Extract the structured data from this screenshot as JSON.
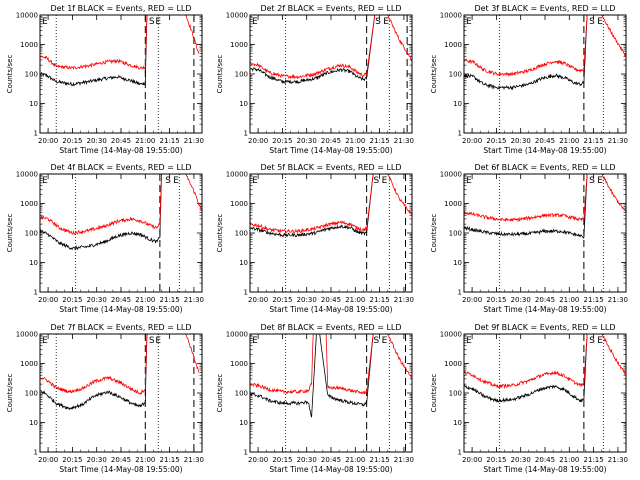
{
  "figure": {
    "background": "#ffffff",
    "axis_color": "#000000",
    "events_color": "#000000",
    "lld_color": "#ff0000"
  },
  "chart_data": [
    {
      "type": "line",
      "title": "Det 1f BLACK = Events, RED = LLD",
      "xlabel": "Start Time (14-May-08 19:55:00)",
      "ylabel": "Counts/sec",
      "xticks": [
        "20:00",
        "20:15",
        "20:30",
        "20:45",
        "21:00",
        "21:15",
        "21:30"
      ],
      "yticks": [
        "1",
        "10",
        "100",
        "1000",
        "10000"
      ],
      "ylog": true,
      "ylim": [
        1,
        10000
      ],
      "xlim_minutes": [
        0,
        100
      ],
      "dotted_lines_minutes": [
        10,
        73
      ],
      "dashed_lines_minutes": [
        65,
        95
      ],
      "markers": [
        "E",
        "S",
        "E"
      ],
      "marker_minutes": [
        0,
        66,
        70
      ],
      "series": [
        {
          "name": "Events",
          "x_minutes": [
            0,
            4,
            10,
            20,
            30,
            40,
            48,
            56,
            62,
            65,
            66,
            90,
            98
          ],
          "values": [
            100,
            90,
            55,
            45,
            55,
            70,
            80,
            60,
            45,
            50,
            10000,
            10000,
            10000
          ]
        },
        {
          "name": "LLD",
          "x_minutes": [
            0,
            4,
            10,
            20,
            30,
            40,
            48,
            56,
            62,
            65,
            66,
            90,
            94,
            98
          ],
          "values": [
            400,
            350,
            180,
            160,
            190,
            250,
            280,
            200,
            160,
            170,
            10000,
            10000,
            2500,
            500
          ]
        }
      ]
    },
    {
      "type": "line",
      "title": "Det 2f BLACK = Events, RED = LLD",
      "xlabel": "Start Time (14-May-08 19:55:00)",
      "ylabel": "Counts/sec",
      "xticks": [
        "20:00",
        "20:15",
        "20:30",
        "20:45",
        "21:00",
        "21:15",
        "21:30"
      ],
      "yticks": [
        "1",
        "10",
        "100",
        "1000",
        "10000"
      ],
      "ylog": true,
      "ylim": [
        1,
        10000
      ],
      "xlim_minutes": [
        0,
        100
      ],
      "dotted_lines_minutes": [
        22,
        86
      ],
      "dashed_lines_minutes": [
        72,
        97
      ],
      "markers": [
        "E",
        "S",
        "E"
      ],
      "marker_minutes": [
        0,
        76,
        81
      ],
      "series": [
        {
          "name": "Events",
          "x_minutes": [
            0,
            5,
            12,
            20,
            30,
            40,
            48,
            56,
            62,
            66,
            70,
            72,
            77,
            80,
            100
          ],
          "values": [
            150,
            140,
            80,
            55,
            55,
            70,
            110,
            140,
            120,
            80,
            65,
            70,
            10000,
            10000,
            10000
          ]
        },
        {
          "name": "LLD",
          "x_minutes": [
            0,
            5,
            12,
            20,
            30,
            40,
            48,
            56,
            62,
            66,
            70,
            72,
            77,
            85,
            92,
            100
          ],
          "values": [
            230,
            200,
            110,
            85,
            80,
            100,
            150,
            200,
            170,
            115,
            90,
            100,
            10000,
            10000,
            1500,
            300
          ]
        }
      ]
    },
    {
      "type": "line",
      "title": "Det 3f BLACK = Events, RED = LLD",
      "xlabel": "Start Time (14-May-08 19:55:00)",
      "ylabel": "Counts/sec",
      "xticks": [
        "20:00",
        "20:15",
        "20:30",
        "20:45",
        "21:00",
        "21:15",
        "21:30"
      ],
      "yticks": [
        "1",
        "10",
        "100",
        "1000",
        "10000"
      ],
      "ylog": true,
      "ylim": [
        1,
        10000
      ],
      "xlim_minutes": [
        0,
        100
      ],
      "dotted_lines_minutes": [
        22,
        86
      ],
      "dashed_lines_minutes": [
        74,
        100
      ],
      "markers": [
        "E",
        "S",
        "E"
      ],
      "marker_minutes": [
        0,
        76,
        81
      ],
      "series": [
        {
          "name": "Events",
          "x_minutes": [
            0,
            6,
            12,
            20,
            30,
            40,
            48,
            56,
            62,
            68,
            72,
            74,
            76,
            85,
            100
          ],
          "values": [
            90,
            80,
            45,
            35,
            35,
            45,
            70,
            90,
            75,
            50,
            45,
            50,
            10000,
            10000,
            10000
          ]
        },
        {
          "name": "LLD",
          "x_minutes": [
            0,
            6,
            12,
            20,
            30,
            40,
            48,
            56,
            62,
            68,
            72,
            74,
            76,
            85,
            92,
            100
          ],
          "values": [
            300,
            250,
            140,
            100,
            100,
            130,
            200,
            270,
            230,
            150,
            130,
            150,
            10000,
            10000,
            2000,
            400
          ]
        }
      ]
    },
    {
      "type": "line",
      "title": "Det 4f BLACK = Events, RED = LLD",
      "xlabel": "Start Time (14-May-08 19:55:00)",
      "ylabel": "Counts/sec",
      "xticks": [
        "20:00",
        "20:15",
        "20:30",
        "20:45",
        "21:00",
        "21:15",
        "21:30"
      ],
      "yticks": [
        "1",
        "10",
        "100",
        "1000",
        "10000"
      ],
      "ylog": true,
      "ylim": [
        1,
        10000
      ],
      "xlim_minutes": [
        0,
        100
      ],
      "dotted_lines_minutes": [
        22,
        86
      ],
      "dashed_lines_minutes": [
        74,
        100
      ],
      "markers": [
        "E",
        "S",
        "E"
      ],
      "marker_minutes": [
        0,
        76,
        81
      ],
      "series": [
        {
          "name": "Events",
          "x_minutes": [
            0,
            5,
            12,
            20,
            30,
            40,
            48,
            56,
            62,
            68,
            72,
            74,
            75,
            90,
            100
          ],
          "values": [
            120,
            90,
            45,
            30,
            35,
            50,
            80,
            100,
            90,
            60,
            50,
            70,
            10000,
            10000,
            10000
          ]
        },
        {
          "name": "LLD",
          "x_minutes": [
            0,
            5,
            12,
            20,
            30,
            40,
            48,
            56,
            62,
            68,
            72,
            74,
            75,
            90,
            96,
            100
          ],
          "values": [
            350,
            300,
            150,
            100,
            120,
            170,
            250,
            300,
            260,
            180,
            150,
            200,
            10000,
            10000,
            2000,
            500
          ]
        }
      ]
    },
    {
      "type": "line",
      "title": "Det 5f BLACK = Events, RED = LLD",
      "xlabel": "Start Time (14-May-08 19:55:00)",
      "ylabel": "Counts/sec",
      "xticks": [
        "20:00",
        "20:15",
        "20:30",
        "20:45",
        "21:00",
        "21:15",
        "21:30"
      ],
      "yticks": [
        "1",
        "10",
        "100",
        "1000",
        "10000"
      ],
      "ylog": true,
      "ylim": [
        1,
        10000
      ],
      "xlim_minutes": [
        0,
        100
      ],
      "dotted_lines_minutes": [
        22,
        86
      ],
      "dashed_lines_minutes": [
        72,
        96
      ],
      "markers": [
        "E",
        "S",
        "E"
      ],
      "marker_minutes": [
        0,
        75,
        80
      ],
      "series": [
        {
          "name": "Events",
          "x_minutes": [
            0,
            5,
            12,
            20,
            30,
            40,
            48,
            56,
            62,
            66,
            70,
            72,
            76,
            82,
            100
          ],
          "values": [
            150,
            130,
            100,
            85,
            85,
            100,
            140,
            170,
            150,
            110,
            95,
            100,
            10000,
            10000,
            10000
          ]
        },
        {
          "name": "LLD",
          "x_minutes": [
            0,
            5,
            12,
            20,
            30,
            40,
            48,
            56,
            62,
            66,
            70,
            72,
            76,
            85,
            92,
            100
          ],
          "values": [
            200,
            180,
            130,
            115,
            115,
            140,
            190,
            230,
            200,
            150,
            130,
            140,
            10000,
            10000,
            1500,
            400
          ]
        }
      ]
    },
    {
      "type": "line",
      "title": "Det 6f BLACK = Events, RED = LLD",
      "xlabel": "Start Time (14-May-08 19:55:00)",
      "ylabel": "Counts/sec",
      "xticks": [
        "20:00",
        "20:15",
        "20:30",
        "20:45",
        "21:00",
        "21:15",
        "21:30"
      ],
      "yticks": [
        "1",
        "10",
        "100",
        "1000",
        "10000"
      ],
      "ylog": true,
      "ylim": [
        1,
        10000
      ],
      "xlim_minutes": [
        0,
        100
      ],
      "dotted_lines_minutes": [
        22,
        86
      ],
      "dashed_lines_minutes": [
        74,
        100
      ],
      "markers": [
        "E",
        "S",
        "E"
      ],
      "marker_minutes": [
        0,
        76,
        81
      ],
      "series": [
        {
          "name": "Events",
          "x_minutes": [
            0,
            8,
            16,
            24,
            32,
            40,
            50,
            60,
            68,
            72,
            74,
            76,
            85,
            100
          ],
          "values": [
            150,
            120,
            100,
            90,
            90,
            95,
            115,
            115,
            90,
            80,
            70,
            10000,
            10000,
            10000
          ]
        },
        {
          "name": "LLD",
          "x_minutes": [
            0,
            8,
            16,
            24,
            32,
            40,
            50,
            60,
            68,
            72,
            74,
            76,
            85,
            92,
            100
          ],
          "values": [
            500,
            400,
            320,
            280,
            280,
            320,
            400,
            400,
            320,
            280,
            300,
            10000,
            10000,
            2000,
            500
          ]
        }
      ]
    },
    {
      "type": "line",
      "title": "Det 7f BLACK = Events, RED = LLD",
      "xlabel": "Start Time (14-May-08 19:55:00)",
      "ylabel": "Counts/sec",
      "xticks": [
        "20:00",
        "20:15",
        "20:30",
        "20:45",
        "21:00",
        "21:15",
        "21:30"
      ],
      "yticks": [
        "1",
        "10",
        "100",
        "1000",
        "10000"
      ],
      "ylog": true,
      "ylim": [
        1,
        10000
      ],
      "xlim_minutes": [
        0,
        100
      ],
      "dotted_lines_minutes": [
        10,
        73
      ],
      "dashed_lines_minutes": [
        65,
        95
      ],
      "markers": [
        "E",
        "S",
        "E"
      ],
      "marker_minutes": [
        0,
        66,
        70
      ],
      "series": [
        {
          "name": "Events",
          "x_minutes": [
            0,
            4,
            10,
            18,
            26,
            34,
            42,
            50,
            58,
            62,
            65,
            66,
            90,
            98
          ],
          "values": [
            120,
            90,
            45,
            30,
            40,
            80,
            110,
            70,
            40,
            35,
            50,
            10000,
            10000,
            10000
          ]
        },
        {
          "name": "LLD",
          "x_minutes": [
            0,
            4,
            10,
            18,
            26,
            34,
            42,
            50,
            58,
            62,
            65,
            66,
            90,
            94,
            98
          ],
          "values": [
            350,
            280,
            150,
            110,
            140,
            250,
            330,
            220,
            120,
            100,
            140,
            10000,
            10000,
            2500,
            500
          ]
        }
      ]
    },
    {
      "type": "line",
      "title": "Det 8f BLACK = Events, RED = LLD",
      "xlabel": "Start Time (14-May-08 19:55:00)",
      "ylabel": "Counts/sec",
      "xticks": [
        "20:00",
        "20:15",
        "20:30",
        "20:45",
        "21:00",
        "21:15",
        "21:30"
      ],
      "yticks": [
        "1",
        "10",
        "100",
        "1000",
        "10000"
      ],
      "ylog": true,
      "ylim": [
        1,
        10000
      ],
      "xlim_minutes": [
        0,
        100
      ],
      "dotted_lines_minutes": [
        22,
        86
      ],
      "dashed_lines_minutes": [
        72,
        96
      ],
      "markers": [
        "E",
        "S",
        "E"
      ],
      "marker_minutes": [
        0,
        75,
        80
      ],
      "series": [
        {
          "name": "Events",
          "x_minutes": [
            0,
            6,
            12,
            20,
            30,
            36,
            38,
            41,
            43,
            48,
            54,
            60,
            64,
            70,
            72,
            76,
            82,
            100
          ],
          "values": [
            90,
            80,
            55,
            45,
            45,
            50,
            15,
            10000,
            10000,
            80,
            60,
            50,
            45,
            40,
            45,
            10000,
            10000,
            10000
          ]
        },
        {
          "name": "LLD",
          "x_minutes": [
            0,
            6,
            12,
            20,
            30,
            36,
            38,
            39,
            47,
            48,
            54,
            60,
            64,
            70,
            72,
            76,
            85,
            92,
            100
          ],
          "values": [
            200,
            170,
            130,
            110,
            110,
            120,
            200,
            10000,
            10000,
            150,
            150,
            130,
            115,
            100,
            110,
            10000,
            10000,
            1500,
            300
          ]
        }
      ]
    },
    {
      "type": "line",
      "title": "Det 9f BLACK = Events, RED = LLD",
      "xlabel": "Start Time (14-May-08 19:55:00)",
      "ylabel": "Counts/sec",
      "xticks": [
        "20:00",
        "20:15",
        "20:30",
        "20:45",
        "21:00",
        "21:15",
        "21:30"
      ],
      "yticks": [
        "1",
        "10",
        "100",
        "1000",
        "10000"
      ],
      "ylog": true,
      "ylim": [
        1,
        10000
      ],
      "xlim_minutes": [
        0,
        100
      ],
      "dotted_lines_minutes": [
        22,
        86
      ],
      "dashed_lines_minutes": [
        74,
        100
      ],
      "markers": [
        "E",
        "S",
        "E"
      ],
      "marker_minutes": [
        0,
        76,
        81
      ],
      "series": [
        {
          "name": "Events",
          "x_minutes": [
            0,
            5,
            12,
            20,
            30,
            40,
            48,
            56,
            62,
            68,
            72,
            74,
            76,
            85,
            100
          ],
          "values": [
            170,
            140,
            80,
            55,
            60,
            90,
            140,
            170,
            130,
            75,
            55,
            60,
            10000,
            10000,
            10000
          ]
        },
        {
          "name": "LLD",
          "x_minutes": [
            0,
            5,
            12,
            20,
            30,
            40,
            48,
            56,
            62,
            68,
            72,
            74,
            76,
            85,
            92,
            100
          ],
          "values": [
            500,
            420,
            250,
            170,
            180,
            260,
            400,
            500,
            380,
            230,
            180,
            200,
            10000,
            10000,
            2000,
            400
          ]
        }
      ]
    }
  ]
}
